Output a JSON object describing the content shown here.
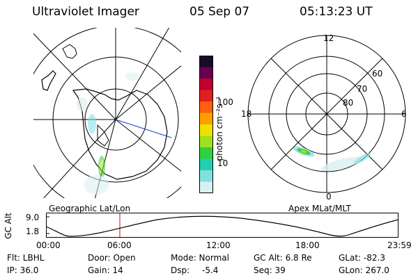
{
  "header": {
    "instrument": "Ultraviolet Imager",
    "date": "05 Sep 07",
    "time": "05:13:23 UT"
  },
  "colorbar": {
    "unit_label": "photon cm⁻²s⁻¹",
    "ticks": [
      "100",
      "10"
    ],
    "colors": [
      "#1a0a2a",
      "#6a0050",
      "#c00030",
      "#e02020",
      "#ff6010",
      "#ffa000",
      "#f0e000",
      "#a0e020",
      "#30d040",
      "#20d0b0",
      "#80e0e0",
      "#d8f0f0"
    ]
  },
  "left_map": {
    "label": "Geographic Lat/Lon"
  },
  "right_map": {
    "label": "Apex MLat/MLT",
    "mlt_labels": {
      "top": "12",
      "left": "18",
      "right": "6",
      "bottom": "0"
    },
    "lat_labels": [
      "60",
      "70",
      "80"
    ]
  },
  "orbit_plot": {
    "y_axis_title": "GC Alt",
    "y_ticks": [
      "9.0",
      "1.8"
    ],
    "x_ticks": [
      "00:00",
      "06:00",
      "12:00",
      "18:00",
      "23:59"
    ]
  },
  "status": {
    "flt": "Flt: LBHL",
    "door": "Door: Open",
    "mode": "Mode: Normal",
    "gc_alt": "GC Alt: 6.8 Re",
    "glat": "GLat: -82.3",
    "ip": "IP: 36.0",
    "gain": "Gain: 14",
    "dsp_label": "Dsp:",
    "dsp_value": "-5.4",
    "seq": "Seq: 39",
    "glon": "GLon: 267.0"
  }
}
